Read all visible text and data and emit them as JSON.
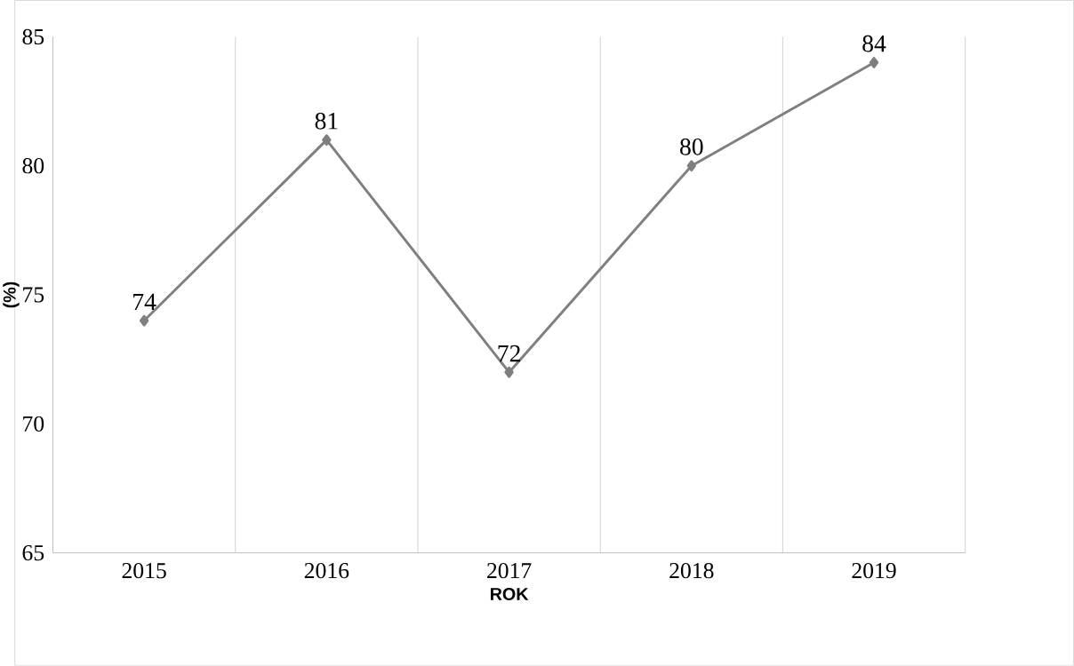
{
  "chart_data": {
    "type": "line",
    "xlabel": "ROK",
    "ylabel": "(%)",
    "categories": [
      "2015",
      "2016",
      "2017",
      "2018",
      "2019"
    ],
    "series": [
      {
        "color": "#7f7f7f",
        "values": [
          74,
          81,
          72,
          80,
          84
        ]
      }
    ],
    "ylim": [
      65,
      85
    ],
    "yticks": [
      65,
      70,
      75,
      80,
      85
    ],
    "grid": "x",
    "marker": "diamond",
    "line_style": "solid",
    "data_labels": true
  }
}
